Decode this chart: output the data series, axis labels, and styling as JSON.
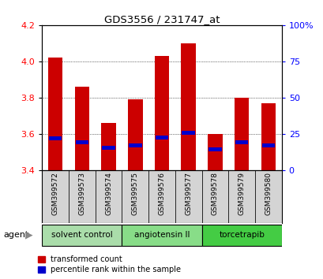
{
  "title": "GDS3556 / 231747_at",
  "samples": [
    "GSM399572",
    "GSM399573",
    "GSM399574",
    "GSM399575",
    "GSM399576",
    "GSM399577",
    "GSM399578",
    "GSM399579",
    "GSM399580"
  ],
  "bar_bottom": 3.4,
  "transformed_counts": [
    4.02,
    3.86,
    3.66,
    3.79,
    4.03,
    4.1,
    3.6,
    3.8,
    3.77
  ],
  "percentile_marker_values": [
    3.575,
    3.555,
    3.525,
    3.535,
    3.58,
    3.605,
    3.515,
    3.555,
    3.535
  ],
  "agents": [
    {
      "label": "solvent control",
      "samples": [
        0,
        1,
        2
      ],
      "color": "#aaddaa"
    },
    {
      "label": "angiotensin II",
      "samples": [
        3,
        4,
        5
      ],
      "color": "#88dd88"
    },
    {
      "label": "torcetrapib",
      "samples": [
        6,
        7,
        8
      ],
      "color": "#44cc44"
    }
  ],
  "ylim": [
    3.4,
    4.2
  ],
  "yticks_left": [
    3.4,
    3.6,
    3.8,
    4.0,
    4.2
  ],
  "yticks_right": [
    0,
    25,
    50,
    75,
    100
  ],
  "ytick_right_labels": [
    "0",
    "25",
    "50",
    "75",
    "100%"
  ],
  "bar_color": "#cc0000",
  "percentile_color": "#0000cc",
  "bar_width": 0.55,
  "background_color": "#ffffff",
  "agent_label": "agent",
  "legend_items": [
    "transformed count",
    "percentile rank within the sample"
  ]
}
